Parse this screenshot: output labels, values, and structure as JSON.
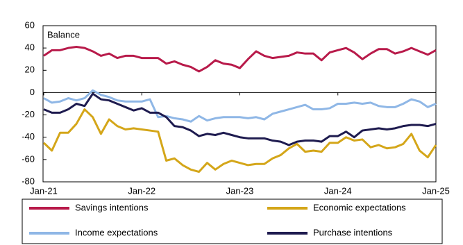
{
  "chart_data": {
    "type": "line",
    "annotations": [
      "Balance"
    ],
    "categories": [
      "Jan-21",
      null,
      null,
      null,
      null,
      null,
      null,
      null,
      null,
      null,
      null,
      null,
      "Jan-22",
      null,
      null,
      null,
      null,
      null,
      null,
      null,
      null,
      null,
      null,
      null,
      "Jan-23",
      null,
      null,
      null,
      null,
      null,
      null,
      null,
      null,
      null,
      null,
      null,
      "Jan-24",
      null,
      null,
      null,
      null,
      null,
      null,
      null,
      null,
      null,
      null,
      null,
      "Jan-25"
    ],
    "ylim": [
      -80,
      60
    ],
    "yticks": [
      -80,
      -60,
      -40,
      -20,
      0,
      20,
      40,
      60
    ],
    "series": [
      {
        "name": "Savings intentions",
        "color": "#b81a4a",
        "values": [
          33,
          38,
          38,
          40,
          41,
          40,
          37,
          33,
          35,
          31,
          33,
          33,
          31,
          31,
          31,
          26,
          28,
          25,
          23,
          19,
          23,
          29,
          26,
          25,
          22,
          30,
          37,
          33,
          31,
          32,
          33,
          36,
          35,
          35,
          29,
          36,
          38,
          40,
          36,
          30,
          35,
          39,
          39,
          35,
          37,
          40,
          37,
          34,
          38
        ]
      },
      {
        "name": "Economic expectations",
        "color": "#d4a619",
        "values": [
          -45,
          -52,
          -36,
          -36,
          -28,
          -15,
          -22,
          -37,
          -24,
          -30,
          -33,
          -32,
          -33,
          -34,
          -35,
          -61,
          -59,
          -65,
          -69,
          -71,
          -63,
          -69,
          -64,
          -61,
          -63,
          -65,
          -64,
          -64,
          -59,
          -56,
          -50,
          -46,
          -53,
          -52,
          -53,
          -45,
          -45,
          -40,
          -43,
          -42,
          -49,
          -47,
          -50,
          -49,
          -46,
          -37,
          -52,
          -58,
          -47
        ]
      },
      {
        "name": "Income expectations",
        "color": "#8fb7e6",
        "values": [
          -5,
          -9,
          -8,
          -5,
          -7,
          -5,
          2,
          -2,
          -4,
          -7,
          -8,
          -8,
          -8,
          -6,
          -22,
          -21,
          -23,
          -24,
          -26,
          -21,
          -25,
          -23,
          -22,
          -22,
          -22,
          -23,
          -22,
          -24,
          -19,
          -17,
          -15,
          -13,
          -11,
          -15,
          -15,
          -14,
          -10,
          -10,
          -9,
          -10,
          -9,
          -12,
          -13,
          -13,
          -10,
          -6,
          -8,
          -13,
          -10
        ]
      },
      {
        "name": "Purchase intentions",
        "color": "#1e1b4f",
        "values": [
          -15,
          -18,
          -18,
          -15,
          -10,
          -12,
          -1,
          -6,
          -7,
          -10,
          -13,
          -16,
          -14,
          -18,
          -18,
          -22,
          -30,
          -31,
          -34,
          -39,
          -37,
          -38,
          -36,
          -38,
          -40,
          -41,
          -41,
          -41,
          -43,
          -44,
          -47,
          -44,
          -43,
          -43,
          -44,
          -39,
          -39,
          -35,
          -40,
          -34,
          -33,
          -32,
          -33,
          -32,
          -30,
          -29,
          -29,
          -30,
          -28
        ]
      }
    ]
  }
}
